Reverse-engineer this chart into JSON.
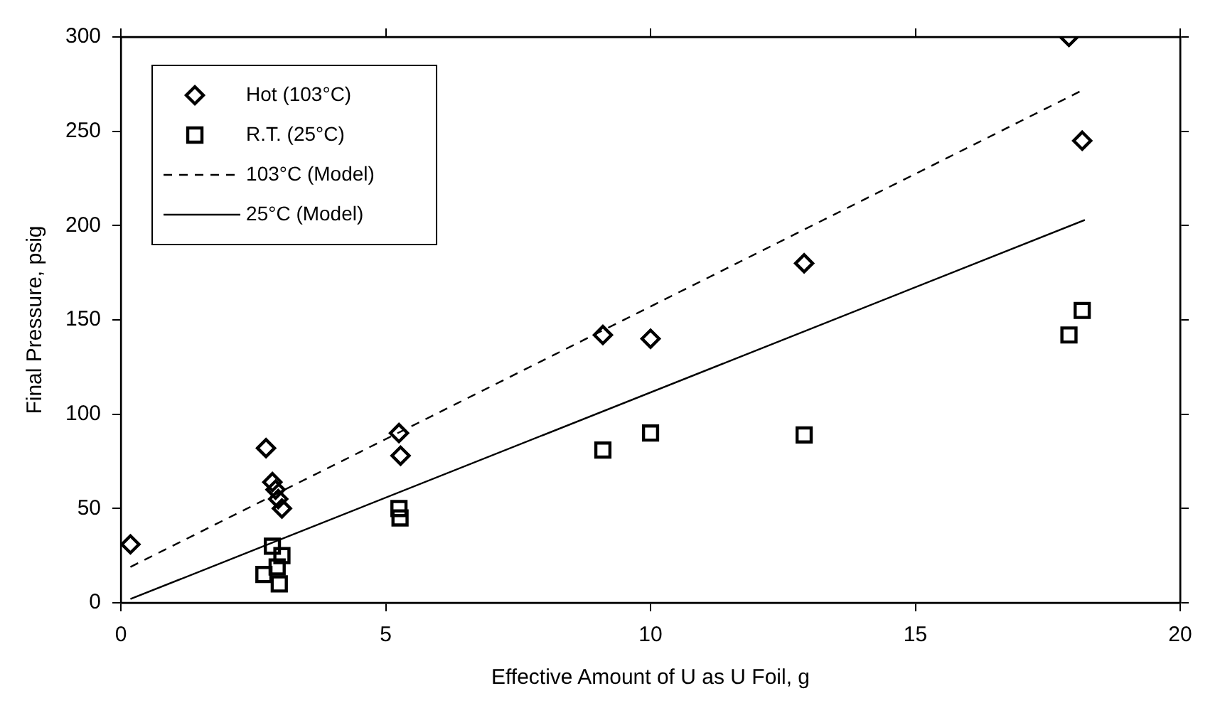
{
  "chart_data": {
    "type": "scatter",
    "xlabel": "Effective Amount of U as U Foil, g",
    "ylabel": "Final Pressure, psig",
    "xlim": [
      0,
      20
    ],
    "xticks": [
      0,
      5,
      10,
      15,
      20
    ],
    "ylim": [
      0,
      300
    ],
    "yticks": [
      0,
      50,
      100,
      150,
      200,
      250,
      300
    ],
    "grid": false,
    "legend": "top left",
    "series": [
      {
        "name": "Hot (103°C)",
        "type": "scatter",
        "marker": "diamond",
        "color": "#000000",
        "x": [
          0.18,
          2.74,
          2.86,
          2.92,
          2.97,
          3.04,
          5.25,
          5.28,
          9.1,
          10,
          12.9,
          17.9,
          18.15
        ],
        "values": [
          31,
          82,
          64,
          60,
          55,
          50,
          90,
          78,
          142,
          140,
          180,
          300,
          245
        ]
      },
      {
        "name": "R.T. (25°C)",
        "type": "scatter",
        "marker": "square",
        "color": "#000000",
        "x": [
          2.7,
          2.86,
          2.95,
          2.99,
          3.04,
          5.25,
          5.27,
          9.1,
          10,
          12.9,
          17.9,
          18.15
        ],
        "values": [
          15,
          30,
          19,
          10,
          25,
          50,
          45,
          81,
          90,
          89,
          142,
          155
        ]
      },
      {
        "name": "103°C (Model)",
        "type": "line",
        "marker": "none",
        "line_style": "dashed",
        "color": "#000000",
        "x": [
          0.18,
          18.1
        ],
        "values": [
          19,
          271
        ]
      },
      {
        "name": "25°C (Model)",
        "type": "line",
        "marker": "none",
        "line_style": "solid",
        "color": "#000000",
        "x": [
          0.18,
          18.2
        ],
        "values": [
          2,
          203
        ]
      }
    ]
  }
}
